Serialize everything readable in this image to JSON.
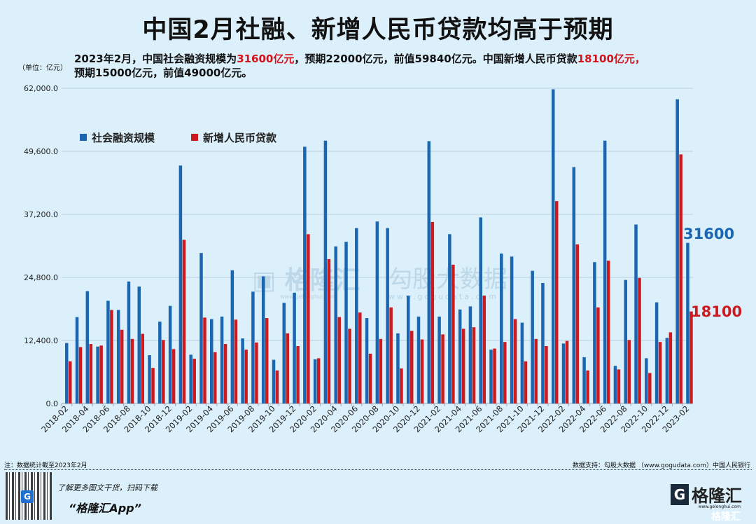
{
  "title": "中国2月社融、新增人民币贷款均高于预期",
  "subtitle": {
    "p1": "2023年2月，中国社会融资规模为",
    "v1": "31600亿元",
    "p2": "，预期22000亿元，前值59840亿元。中国新增人民币贷款",
    "v2": "18100亿元，",
    "p3": "预期15000亿元，前值49000亿元。"
  },
  "unit_label": "（单位：亿元）",
  "footer": {
    "note": "注：数据统计截至2023年2月",
    "source": "数据支持：勾股大数据 （www.gogudata.com）中国人民银行",
    "promo": "了解更多图文干货，扫码下载",
    "app": "“格隆汇App”",
    "logo_text": "格隆汇",
    "logo_url": "www.gelonghui.com"
  },
  "watermark": {
    "left": "格隆汇",
    "left_url": "www.gelonghui.com",
    "right": "勾股大数据",
    "right_url": "www.gogudata.com"
  },
  "colors": {
    "tsf": "#1a66b0",
    "loans": "#cc1a1f",
    "grid": "#b9cfdc",
    "background": "#dbf0fb"
  },
  "chart_data": {
    "type": "bar",
    "ylim": [
      0,
      62000
    ],
    "yticks": [
      "0.0",
      "12,400.0",
      "24,800.0",
      "37,200.0",
      "49,600.0",
      "62,000.0"
    ],
    "ytick_values": [
      0,
      12400,
      24800,
      37200,
      49600,
      62000
    ],
    "grid": true,
    "legend_position": "top-left",
    "categories": [
      "2018-02",
      "2018-03",
      "2018-04",
      "2018-05",
      "2018-06",
      "2018-07",
      "2018-08",
      "2018-09",
      "2018-10",
      "2018-11",
      "2018-12",
      "2019-01",
      "2019-02",
      "2019-03",
      "2019-04",
      "2019-05",
      "2019-06",
      "2019-07",
      "2019-08",
      "2019-09",
      "2019-10",
      "2019-11",
      "2019-12",
      "2020-01",
      "2020-02",
      "2020-03",
      "2020-04",
      "2020-05",
      "2020-06",
      "2020-07",
      "2020-08",
      "2020-09",
      "2020-10",
      "2020-11",
      "2020-12",
      "2021-01",
      "2021-02",
      "2021-03",
      "2021-04",
      "2021-05",
      "2021-06",
      "2021-07",
      "2021-08",
      "2021-09",
      "2021-10",
      "2021-11",
      "2021-12",
      "2022-01",
      "2022-02",
      "2022-03",
      "2022-04",
      "2022-05",
      "2022-06",
      "2022-07",
      "2022-08",
      "2022-09",
      "2022-10",
      "2022-11",
      "2022-12",
      "2023-01",
      "2023-02"
    ],
    "xtick_labels": [
      "2018-02",
      "2018-04",
      "2018-06",
      "2018-08",
      "2018-10",
      "2018-12",
      "2019-02",
      "2019-04",
      "2019-06",
      "2019-08",
      "2019-10",
      "2019-12",
      "2020-02",
      "2020-04",
      "2020-06",
      "2020-08",
      "2020-10",
      "2020-12",
      "2021-02",
      "2021-04",
      "2021-06",
      "2021-08",
      "2021-10",
      "2021-12",
      "2022-02",
      "2022-04",
      "2022-06",
      "2022-08",
      "2022-10",
      "2022-12",
      "2023-02"
    ],
    "series": [
      {
        "name": "社会融资规模",
        "values": [
          11900,
          17000,
          22100,
          11200,
          20200,
          18400,
          24000,
          23000,
          9500,
          16100,
          19200,
          46800,
          9600,
          29600,
          16600,
          17100,
          26200,
          12800,
          22000,
          25000,
          8600,
          19800,
          21800,
          50500,
          8700,
          51700,
          30900,
          31800,
          34500,
          16800,
          35800,
          34500,
          13800,
          21200,
          17100,
          51600,
          17100,
          33300,
          18500,
          19100,
          36600,
          10600,
          29500,
          28900,
          15900,
          26100,
          23700,
          61800,
          11800,
          46500,
          9100,
          27800,
          51700,
          7400,
          24300,
          35200,
          8900,
          19900,
          12900,
          59840,
          31600
        ]
      },
      {
        "name": "新增人民币贷款",
        "values": [
          8300,
          11100,
          11700,
          11400,
          18400,
          14500,
          12700,
          13700,
          7000,
          12500,
          10700,
          32200,
          8800,
          16900,
          10100,
          11700,
          16500,
          10600,
          12000,
          16800,
          6500,
          13800,
          11300,
          33300,
          8900,
          28400,
          17000,
          14700,
          17900,
          9800,
          12700,
          18900,
          6900,
          14300,
          12600,
          35700,
          13600,
          27300,
          14700,
          15000,
          21200,
          10800,
          12100,
          16600,
          8300,
          12700,
          11300,
          39800,
          12300,
          31300,
          6500,
          18900,
          28100,
          6700,
          12500,
          24700,
          6000,
          12100,
          14000,
          49000,
          18100
        ]
      }
    ],
    "annotations": [
      "31600",
      "18100"
    ]
  }
}
